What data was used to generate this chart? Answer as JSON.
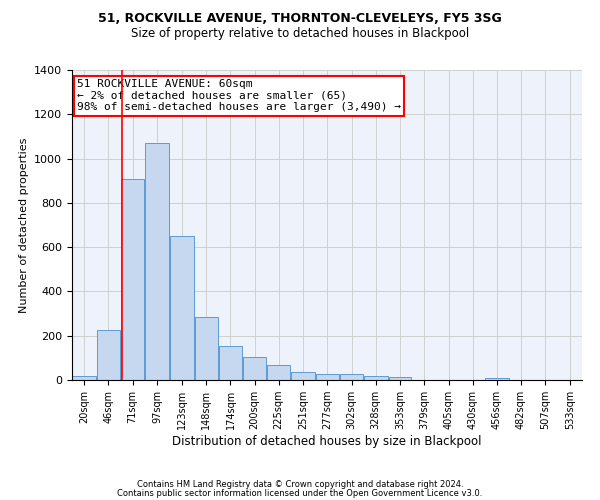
{
  "title1": "51, ROCKVILLE AVENUE, THORNTON-CLEVELEYS, FY5 3SG",
  "title2": "Size of property relative to detached houses in Blackpool",
  "xlabel": "Distribution of detached houses by size in Blackpool",
  "ylabel": "Number of detached properties",
  "footnote1": "Contains HM Land Registry data © Crown copyright and database right 2024.",
  "footnote2": "Contains public sector information licensed under the Open Government Licence v3.0.",
  "annotation_line1": "51 ROCKVILLE AVENUE: 60sqm",
  "annotation_line2": "← 2% of detached houses are smaller (65)",
  "annotation_line3": "98% of semi-detached houses are larger (3,490) →",
  "bar_color": "#c5d8f0",
  "bar_edge_color": "#5b9bd5",
  "grid_color": "#d0d0d0",
  "background_color": "#eef2fa",
  "redline_x": 60,
  "categories": [
    "20sqm",
    "46sqm",
    "71sqm",
    "97sqm",
    "123sqm",
    "148sqm",
    "174sqm",
    "200sqm",
    "225sqm",
    "251sqm",
    "277sqm",
    "302sqm",
    "328sqm",
    "353sqm",
    "379sqm",
    "405sqm",
    "430sqm",
    "456sqm",
    "482sqm",
    "507sqm",
    "533sqm"
  ],
  "bin_edges": [
    7,
    33,
    58,
    84,
    110,
    136,
    162,
    187,
    213,
    238,
    264,
    290,
    315,
    341,
    366,
    392,
    418,
    443,
    469,
    494,
    520,
    546
  ],
  "values": [
    20,
    225,
    910,
    1070,
    650,
    285,
    155,
    105,
    70,
    37,
    25,
    25,
    20,
    12,
    0,
    0,
    0,
    9,
    0,
    0,
    0
  ],
  "ylim": [
    0,
    1400
  ],
  "yticks": [
    0,
    200,
    400,
    600,
    800,
    1000,
    1200,
    1400
  ],
  "title1_fontsize": 9,
  "title2_fontsize": 8.5,
  "ylabel_fontsize": 8,
  "xlabel_fontsize": 8.5,
  "footnote_fontsize": 6,
  "annotation_fontsize": 8,
  "xtick_fontsize": 7,
  "ytick_fontsize": 8
}
